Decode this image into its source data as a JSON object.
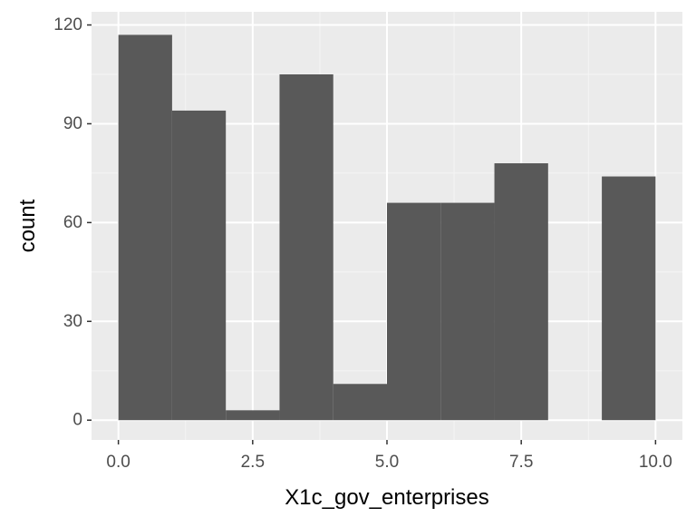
{
  "chart_data": {
    "type": "bar",
    "title": "",
    "xlabel": "X1c_gov_enterprises",
    "ylabel": "count",
    "xlim": [
      -0.5,
      10.5
    ],
    "ylim": [
      -6,
      124
    ],
    "x_ticks": [
      0.0,
      2.5,
      5.0,
      7.5,
      10.0
    ],
    "x_tick_labels": [
      "0.0",
      "2.5",
      "5.0",
      "7.5",
      "10.0"
    ],
    "y_ticks": [
      0,
      30,
      60,
      90,
      120
    ],
    "y_tick_labels": [
      "0",
      "30",
      "60",
      "90",
      "120"
    ],
    "grid": true,
    "legend": "none",
    "bins": [
      {
        "x0": 0,
        "x1": 1,
        "count": 117
      },
      {
        "x0": 1,
        "x1": 2,
        "count": 94
      },
      {
        "x0": 2,
        "x1": 3,
        "count": 3
      },
      {
        "x0": 3,
        "x1": 4,
        "count": 105
      },
      {
        "x0": 4,
        "x1": 5,
        "count": 11
      },
      {
        "x0": 5,
        "x1": 6,
        "count": 66
      },
      {
        "x0": 6,
        "x1": 7,
        "count": 66
      },
      {
        "x0": 7,
        "x1": 8,
        "count": 78
      },
      {
        "x0": 8,
        "x1": 9,
        "count": 0
      },
      {
        "x0": 9,
        "x1": 10,
        "count": 74
      }
    ],
    "colors": {
      "bar": "#595959",
      "panel": "#ebebeb",
      "grid_major": "#ffffff",
      "grid_minor": "#f5f5f5",
      "tick_text": "#4d4d4d",
      "axis_title": "#000000"
    }
  }
}
